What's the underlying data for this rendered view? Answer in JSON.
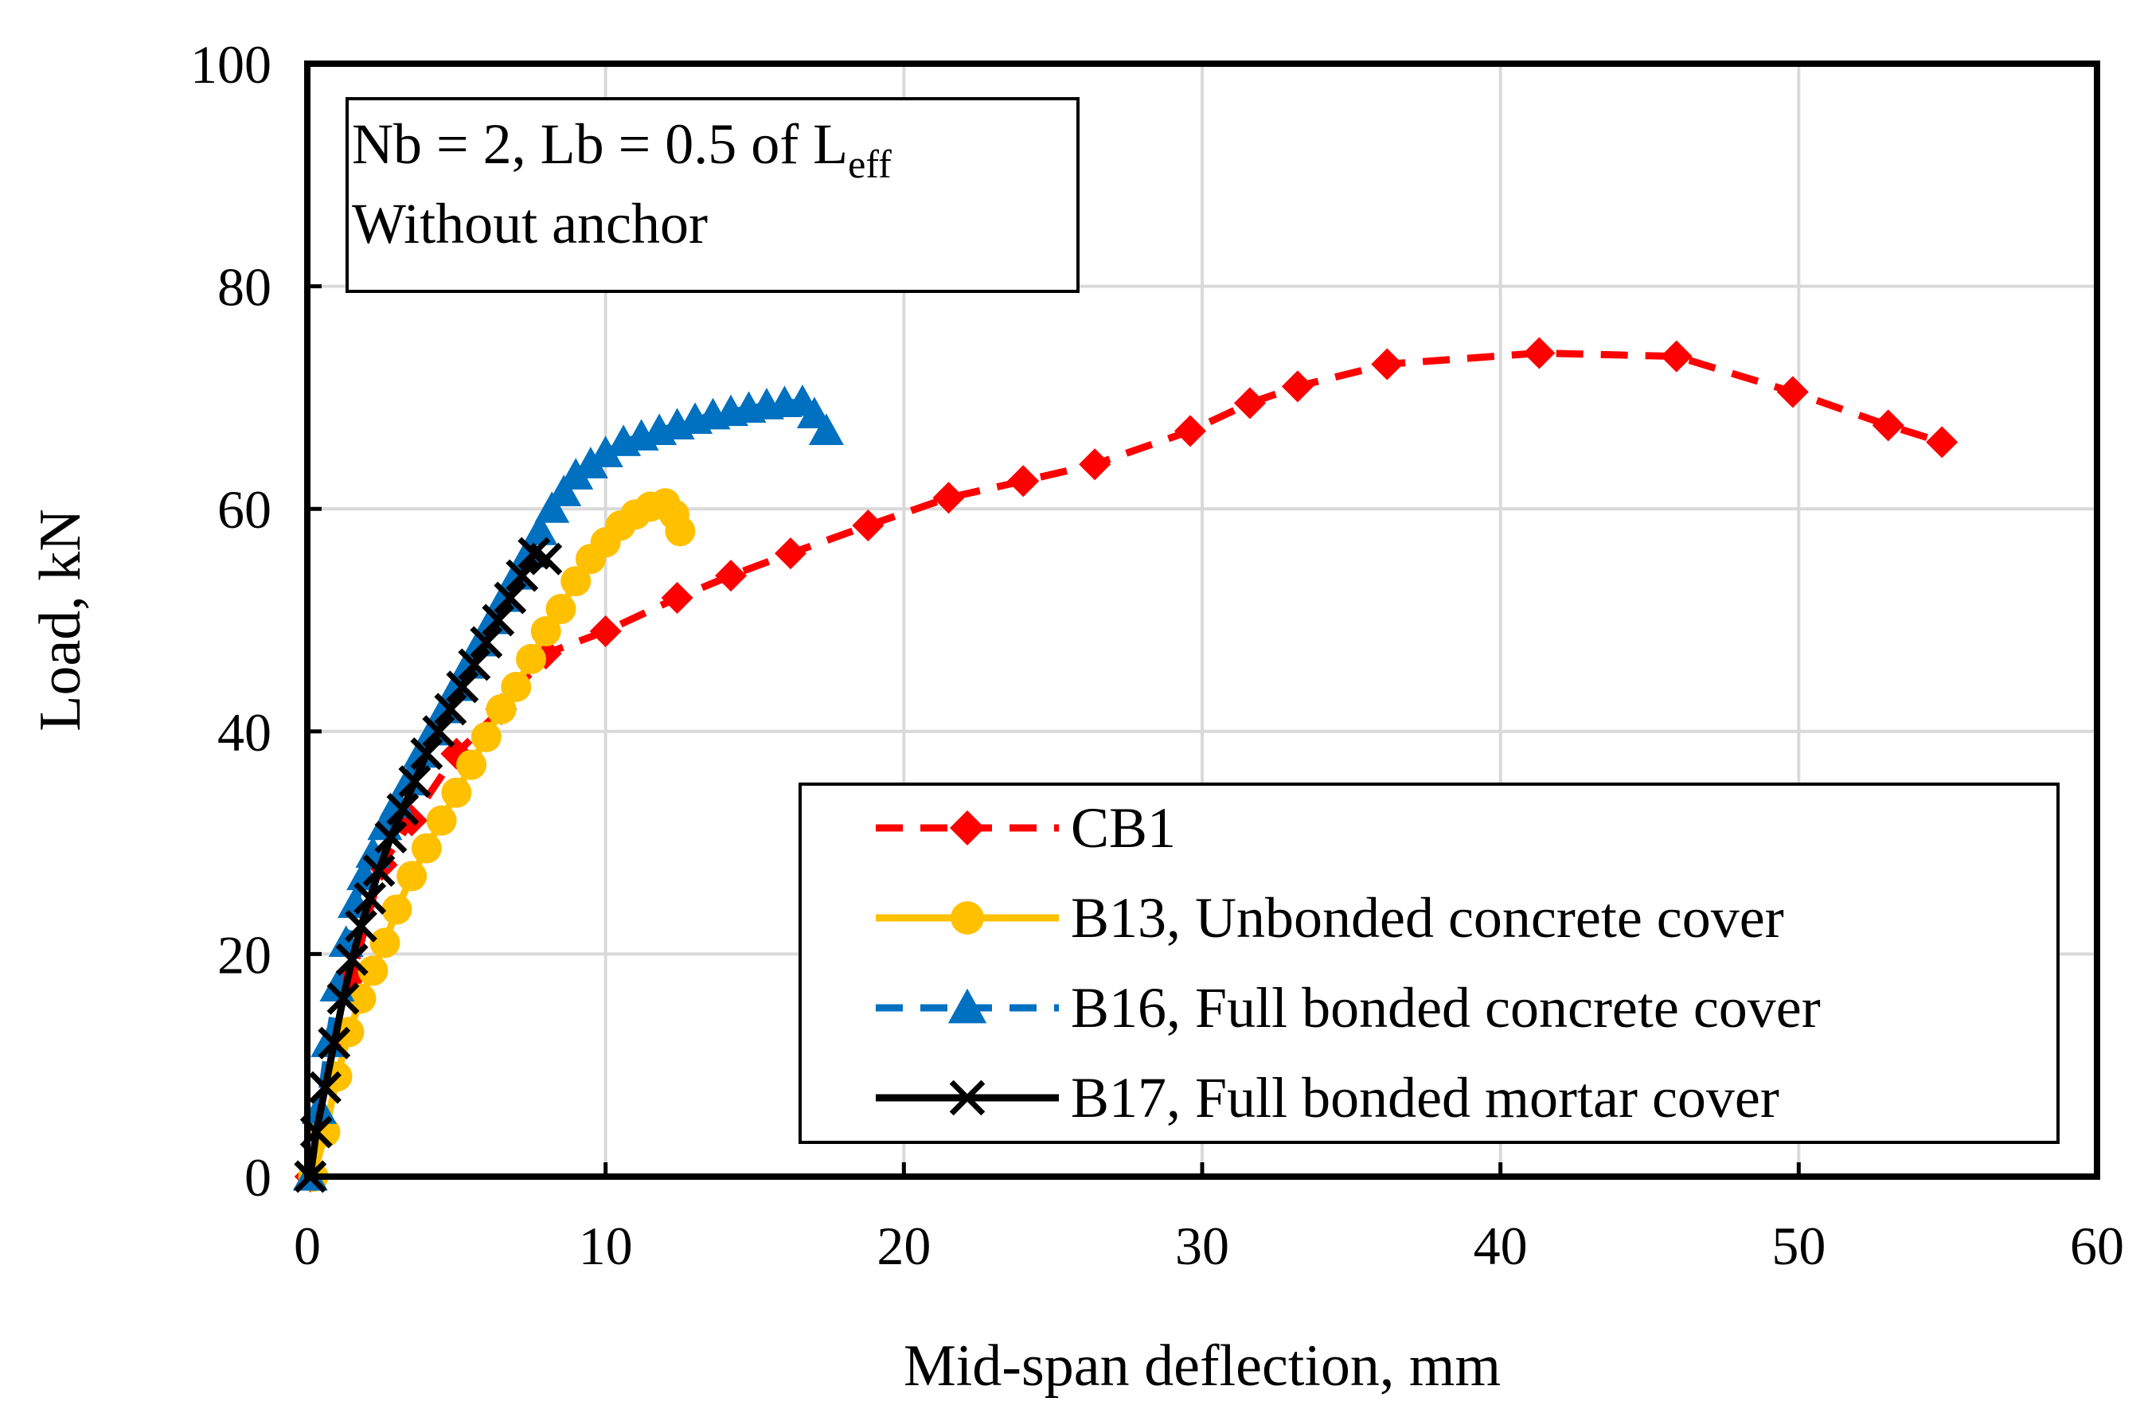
{
  "chart_data": {
    "type": "line",
    "title": "",
    "xlabel": "Mid-span deflection, mm",
    "ylabel": "Load,  kN",
    "xlim": [
      0,
      60
    ],
    "ylim": [
      0,
      100
    ],
    "xticks": [
      "0",
      "10",
      "20",
      "30",
      "40",
      "50",
      "60"
    ],
    "yticks": [
      "0",
      "20",
      "40",
      "60",
      "80",
      "100"
    ],
    "grid": true,
    "legend_position": "bottom-right",
    "annotation": {
      "line1_main": "Nb = 2, Lb = 0.5 of L",
      "line1_sub": "eff",
      "line2": "Without anchor"
    },
    "series": [
      {
        "name": "CB1",
        "color": "#ff0000",
        "line_style": "dashed",
        "marker": "diamond",
        "x": [
          0.1,
          1.5,
          2.5,
          3.5,
          5.0,
          6.5,
          8.0,
          10.0,
          12.4,
          14.2,
          16.2,
          18.8,
          21.5,
          24.0,
          26.4,
          29.6,
          31.6,
          33.2,
          36.2,
          41.3,
          45.9,
          49.8,
          53.0,
          54.8
        ],
        "y": [
          0,
          18,
          28,
          32,
          38,
          42,
          47,
          49,
          52,
          54,
          56,
          58.5,
          61,
          62.5,
          64,
          67,
          69.5,
          71,
          73,
          74,
          73.7,
          70.5,
          67.5,
          66
        ]
      },
      {
        "name": "B13, Unbonded concrete cover",
        "color": "#ffc000",
        "line_style": "solid",
        "marker": "circle",
        "x": [
          0.2,
          0.6,
          1.0,
          1.4,
          1.8,
          2.2,
          2.6,
          3.0,
          3.5,
          4.0,
          4.5,
          5.0,
          5.5,
          6.0,
          6.5,
          7.0,
          7.5,
          8.0,
          8.5,
          9.0,
          9.5,
          10.0,
          10.5,
          11.0,
          11.5,
          12.0,
          12.3,
          12.5
        ],
        "y": [
          0,
          4,
          9,
          13,
          16,
          18.5,
          21,
          24,
          27,
          29.5,
          32,
          34.5,
          37,
          39.5,
          42,
          44,
          46.5,
          49,
          51,
          53.5,
          55.5,
          57,
          58.5,
          59.5,
          60.2,
          60.5,
          59.5,
          58
        ]
      },
      {
        "name": "B16, Full bonded concrete cover",
        "color": "#0070c0",
        "line_style": "dashed",
        "marker": "triangle",
        "x": [
          0.1,
          0.4,
          0.7,
          1.0,
          1.3,
          1.6,
          1.9,
          2.2,
          2.6,
          3.0,
          3.4,
          3.8,
          4.2,
          4.6,
          5.0,
          5.4,
          5.8,
          6.2,
          6.6,
          7.0,
          7.4,
          7.8,
          8.2,
          8.6,
          9.0,
          9.5,
          10.0,
          10.6,
          11.2,
          11.8,
          12.4,
          13.0,
          13.6,
          14.2,
          14.8,
          15.4,
          16.0,
          16.6,
          17.0,
          17.4
        ],
        "y": [
          0,
          6,
          12,
          17,
          21,
          24.5,
          27,
          29,
          31.5,
          33.5,
          35.5,
          38,
          40,
          42,
          44,
          46,
          48,
          50,
          52,
          54,
          56,
          58,
          60,
          61.5,
          63,
          64,
          65,
          66,
          66.5,
          67,
          67.5,
          68,
          68.4,
          68.7,
          69,
          69.3,
          69.5,
          69.6,
          68.5,
          67
        ]
      },
      {
        "name": "B17, Full bonded mortar cover",
        "color": "#000000",
        "line_style": "solid",
        "marker": "x",
        "x": [
          0.1,
          0.3,
          0.6,
          0.9,
          1.2,
          1.5,
          1.8,
          2.1,
          2.4,
          2.8,
          3.2,
          3.6,
          4.0,
          4.4,
          4.8,
          5.2,
          5.6,
          6.0,
          6.4,
          6.8,
          7.2,
          7.6,
          8.0
        ],
        "y": [
          0,
          4,
          8,
          12,
          16,
          19.5,
          22.5,
          25,
          27.5,
          30.5,
          33,
          35.5,
          38,
          40,
          42,
          44,
          46,
          48,
          50,
          52,
          54,
          56,
          55.5
        ]
      }
    ]
  }
}
